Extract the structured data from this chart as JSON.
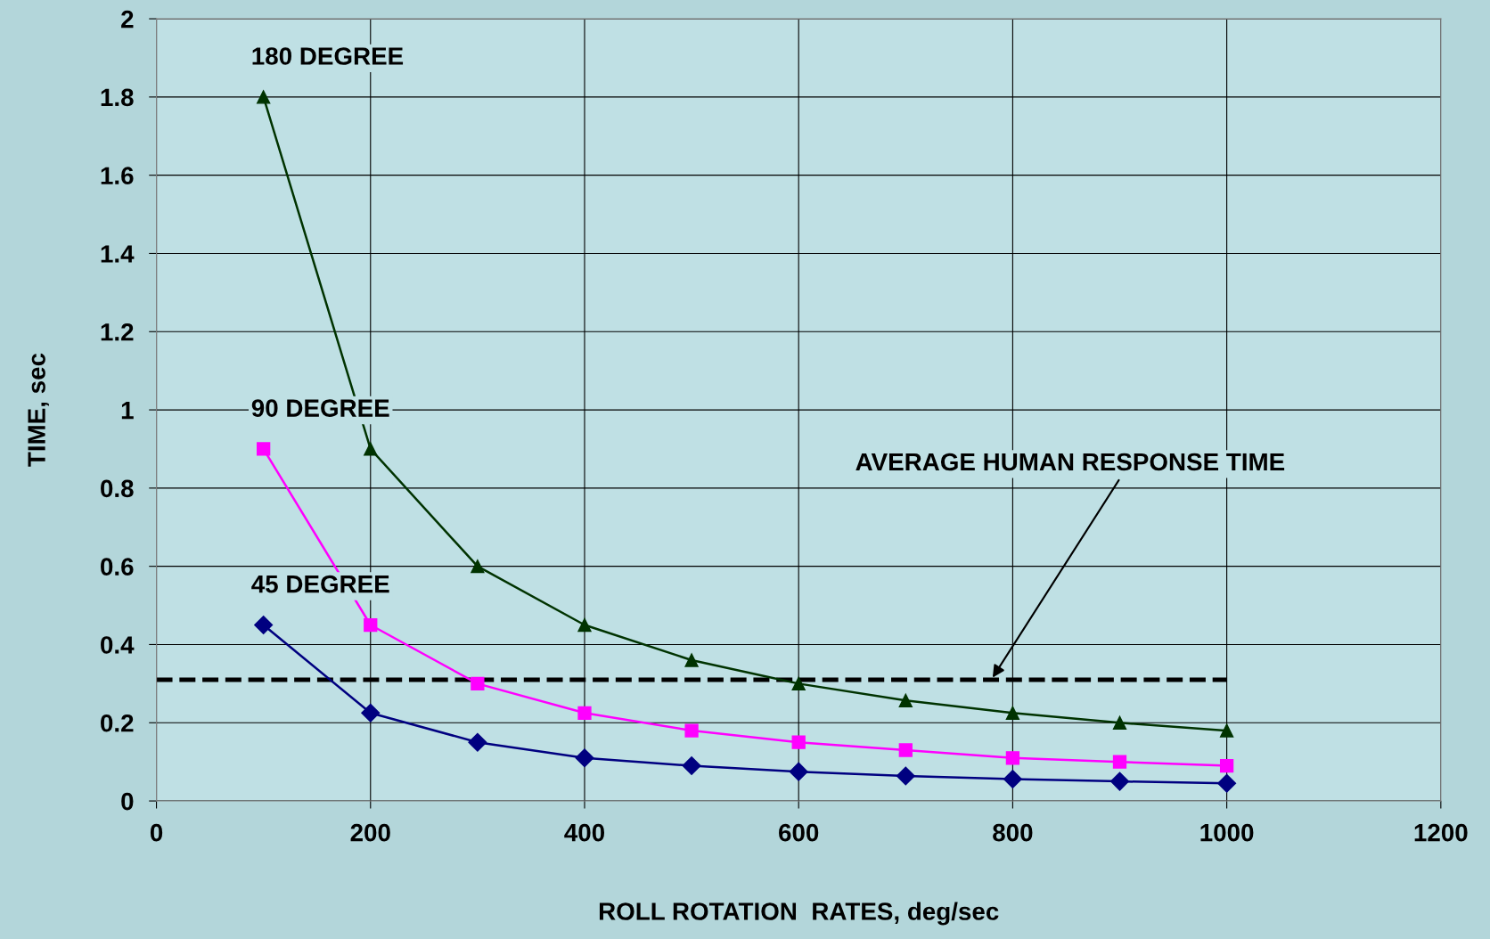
{
  "chart_data": {
    "type": "line",
    "xlabel": "ROLL ROTATION  RATES, deg/sec",
    "ylabel": "TIME, sec",
    "x": [
      100,
      200,
      300,
      400,
      500,
      600,
      700,
      800,
      900,
      1000
    ],
    "series": [
      {
        "name": "45 DEGREE",
        "color": "#000080",
        "marker": "diamond",
        "values": [
          0.45,
          0.225,
          0.15,
          0.11,
          0.09,
          0.075,
          0.064,
          0.056,
          0.05,
          0.045
        ]
      },
      {
        "name": "90 DEGREE",
        "color": "#ff00ff",
        "marker": "square",
        "values": [
          0.9,
          0.45,
          0.3,
          0.225,
          0.18,
          0.15,
          0.13,
          0.11,
          0.1,
          0.09
        ]
      },
      {
        "name": "180 DEGREE",
        "color": "#003300",
        "marker": "triangle",
        "values": [
          1.8,
          0.9,
          0.6,
          0.45,
          0.36,
          0.3,
          0.257,
          0.225,
          0.2,
          0.18
        ]
      }
    ],
    "ref_lines": [
      {
        "axis": "y",
        "value": 0.31,
        "color": "#000000",
        "line_style": "dashed",
        "label": "AVERAGE HUMAN RESPONSE TIME"
      }
    ],
    "xlim": [
      0,
      1200
    ],
    "xticks": [
      0,
      200,
      400,
      600,
      800,
      1000,
      1200
    ],
    "ylim": [
      0,
      2
    ],
    "yticks": [
      0,
      0.2,
      0.4,
      0.6,
      0.8,
      1,
      1.2,
      1.4,
      1.6,
      1.8,
      2
    ],
    "grid": true,
    "legend": false
  }
}
